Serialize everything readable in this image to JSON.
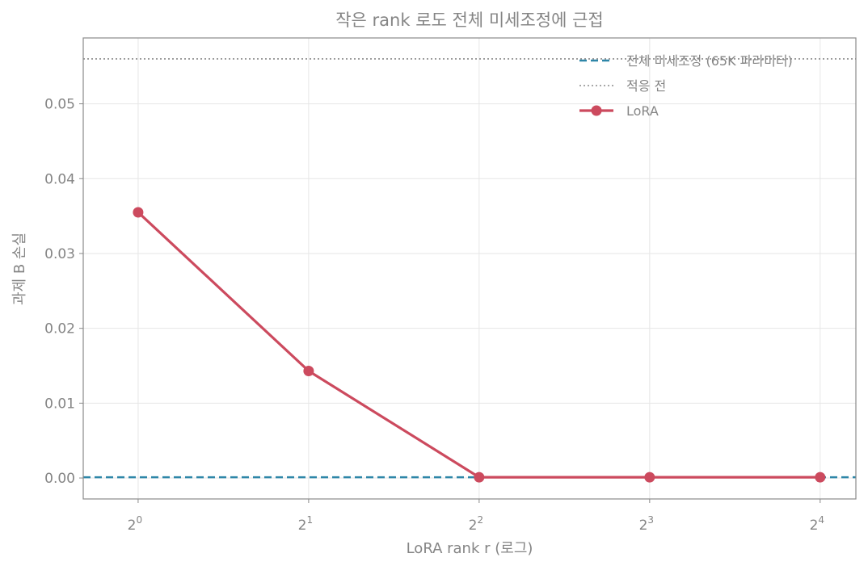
{
  "chart_data": {
    "type": "line",
    "title": "작은 rank 로도 전체 미세조정에 근접",
    "xlabel": "LoRA rank r (로그)",
    "ylabel": "과제 B 손실",
    "x_scale": "log2",
    "x_ticks": [
      {
        "base": "2",
        "exp": "0",
        "value": 1
      },
      {
        "base": "2",
        "exp": "1",
        "value": 2
      },
      {
        "base": "2",
        "exp": "2",
        "value": 4
      },
      {
        "base": "2",
        "exp": "3",
        "value": 8
      },
      {
        "base": "2",
        "exp": "4",
        "value": 16
      }
    ],
    "y_ticks": [
      "0.00",
      "0.01",
      "0.02",
      "0.03",
      "0.04",
      "0.05"
    ],
    "xlim": [
      0.8,
      18.5
    ],
    "ylim": [
      -0.0028,
      0.0588
    ],
    "grid": true,
    "legend_position": "top-right",
    "series": [
      {
        "name": "LoRA",
        "color": "#cc4a5e",
        "style": "solid-marker",
        "x": [
          1,
          2,
          4,
          8,
          16
        ],
        "y": [
          0.0355,
          0.0143,
          0.0001,
          0.0001,
          0.0001
        ]
      }
    ],
    "reference_lines": [
      {
        "name": "전체 미세조정 (65K 파라미터)",
        "color": "#2e86a8",
        "style": "dashed",
        "y": 0.0001
      },
      {
        "name": "적응 전",
        "color": "#8a8a8a",
        "style": "dotted",
        "y": 0.056
      }
    ]
  }
}
